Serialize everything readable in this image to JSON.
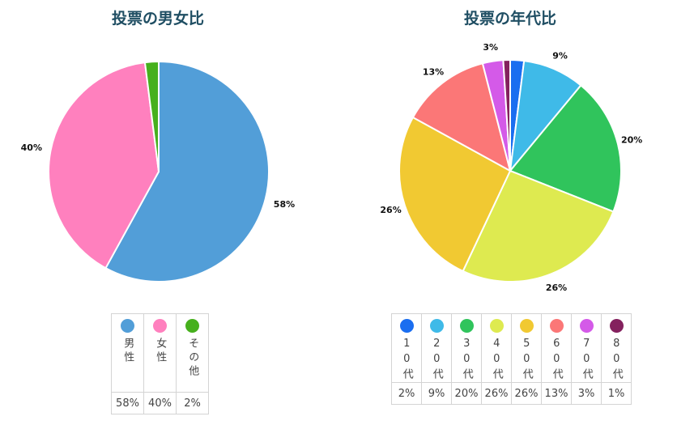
{
  "chart_data": [
    {
      "type": "pie",
      "title": "投票の男女比",
      "categories": [
        "男性",
        "女性",
        "その他"
      ],
      "values": [
        58,
        40,
        2
      ],
      "labels": [
        "58%",
        "40%",
        "2%"
      ],
      "outer_labels": [
        "58%",
        "40%",
        ""
      ],
      "colors": [
        "#529ed8",
        "#ff80be",
        "#46b01d"
      ],
      "legend": "bottom"
    },
    {
      "type": "pie",
      "title": "投票の年代比",
      "categories": [
        "10代",
        "20代",
        "30代",
        "40代",
        "50代",
        "60代",
        "70代",
        "80代"
      ],
      "values": [
        2,
        9,
        20,
        26,
        26,
        13,
        3,
        1
      ],
      "labels": [
        "2%",
        "9%",
        "20%",
        "26%",
        "26%",
        "13%",
        "3%",
        "1%"
      ],
      "outer_labels": [
        "",
        "9%",
        "20%",
        "26%",
        "26%",
        "13%",
        "3%",
        ""
      ],
      "colors": [
        "#1a6ef0",
        "#3fbae8",
        "#30c45c",
        "#deea50",
        "#f1c932",
        "#fb7777",
        "#d45ae8",
        "#84215e"
      ],
      "legend": "bottom"
    }
  ]
}
